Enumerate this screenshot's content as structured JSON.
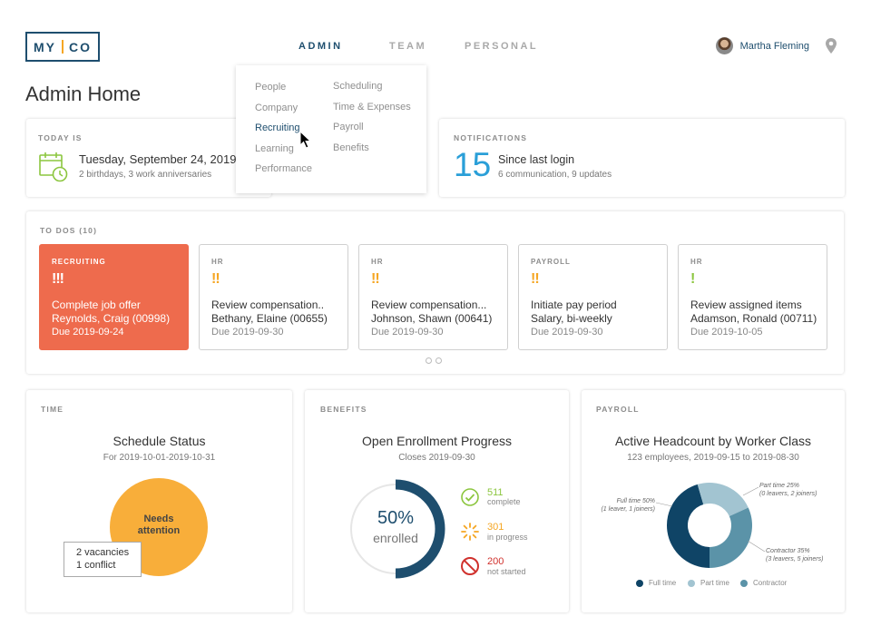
{
  "logo": {
    "left": "MY",
    "right": "CO"
  },
  "nav": {
    "items": [
      {
        "label": "ADMIN",
        "active": true
      },
      {
        "label": "TEAM",
        "active": false
      },
      {
        "label": "PERSONAL",
        "active": false
      }
    ]
  },
  "user": {
    "name": "Martha Fleming",
    "avatar_icon": "user-avatar",
    "location_icon": "map-pin-icon"
  },
  "page_title": "Admin Home",
  "dropdown": {
    "col1": [
      "People",
      "Company",
      "Recruiting",
      "Learning",
      "Performance"
    ],
    "col2": [
      "Scheduling",
      "Time & Expenses",
      "Payroll",
      "Benefits"
    ],
    "active": "Recruiting"
  },
  "today": {
    "label": "TODAY IS",
    "date": "Tuesday, September 24, 2019",
    "sub": "2 birthdays, 3 work anniversaries",
    "icon": "calendar-clock-icon"
  },
  "notifications": {
    "label": "NOTIFICATIONS",
    "count": "15",
    "main": "Since last login",
    "sub": "6 communication, 9 updates"
  },
  "todos": {
    "label": "TO DOS (10)",
    "items": [
      {
        "category": "RECRUITING",
        "priority": "!!!",
        "line1": "Complete job offer",
        "line2": "Reynolds, Craig (00998)",
        "due": "Due 2019-09-24"
      },
      {
        "category": "HR",
        "priority": "!!",
        "line1": "Review compensation..",
        "line2": "Bethany, Elaine (00655)",
        "due": "Due 2019-09-30"
      },
      {
        "category": "HR",
        "priority": "!!",
        "line1": "Review compensation...",
        "line2": "Johnson, Shawn (00641)",
        "due": "Due 2019-09-30"
      },
      {
        "category": "PAYROLL",
        "priority": "!!",
        "line1": "Initiate pay period",
        "line2": "Salary, bi-weekly",
        "due": "Due 2019-09-30"
      },
      {
        "category": "HR",
        "priority": "!",
        "line1": "Review assigned items",
        "line2": "Adamson, Ronald (00711)",
        "due": "Due 2019-10-05"
      }
    ],
    "pages": 2,
    "current_page": 1
  },
  "time": {
    "label": "TIME",
    "title": "Schedule Status",
    "sub": "For 2019-10-01-2019-10-31",
    "status_line1": "Needs",
    "status_line2": "attention",
    "tooltip_line1": "2 vacancies",
    "tooltip_line2": "1 conflict"
  },
  "benefits": {
    "label": "BENEFITS",
    "title": "Open Enrollment Progress",
    "sub": "Closes 2019-09-30",
    "percent": "50%",
    "percent_value": 50,
    "percent_word": "enrolled",
    "stats": [
      {
        "value": "511",
        "label": "complete",
        "color": "#8cc63f",
        "icon": "check-circle-icon"
      },
      {
        "value": "301",
        "label": "in progress",
        "color": "#f5a623",
        "icon": "progress-spinner-icon"
      },
      {
        "value": "200",
        "label": "not started",
        "color": "#d0312d",
        "icon": "prohibited-icon"
      }
    ]
  },
  "payroll": {
    "label": "PAYROLL",
    "title": "Active Headcount by Worker Class",
    "sub": "123 employees, 2019-09-15 to 2019-08-30",
    "notes": {
      "full_time": [
        "Full time 50%",
        "(1 leaver, 1 joiners)"
      ],
      "part_time": [
        "Part time 25%",
        "(0 leavers, 2 joiners)"
      ],
      "contractor": [
        "Contractor 35%",
        "(3 leavers, 5 joiners)"
      ]
    }
  },
  "chart_data": {
    "type": "pie",
    "categories": [
      "Full time",
      "Part time",
      "Contractor"
    ],
    "values": [
      50,
      25,
      35
    ],
    "colors": [
      "#0f4466",
      "#a2c4d1",
      "#5b93a8"
    ]
  },
  "colors": {
    "brand": "#1e4e6e",
    "accent": "#f5a623",
    "hot": "#ee6b4d",
    "notif": "#2a9fd8"
  }
}
